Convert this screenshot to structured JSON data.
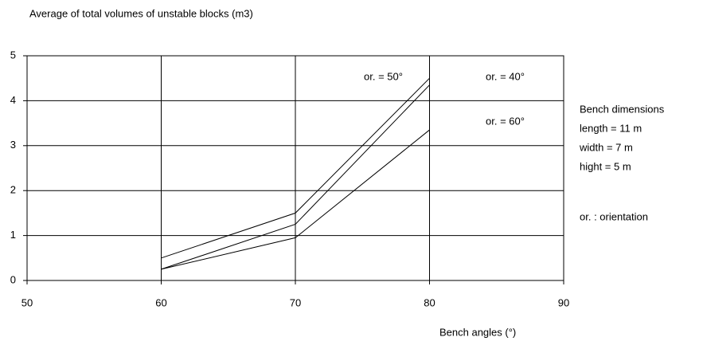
{
  "chart_data": {
    "type": "line",
    "title": "Average of total volumes of unstable blocks  (m3)",
    "x_label": "Bench angles (°)",
    "x": [
      60,
      70,
      80
    ],
    "series": [
      {
        "name": "or. = 40°",
        "color": "#000000",
        "values": [
          0.5,
          1.5,
          4.5
        ]
      },
      {
        "name": "or. = 50°",
        "color": "#000000",
        "values": [
          0.25,
          1.25,
          4.35
        ]
      },
      {
        "name": "or. = 60°",
        "color": "#000000",
        "values": [
          0.25,
          0.95,
          3.35
        ]
      }
    ],
    "xlim": [
      50,
      90
    ],
    "xticks": [
      50,
      60,
      70,
      80,
      90
    ],
    "ylim": [
      0,
      5
    ],
    "yticks": [
      0,
      1,
      2,
      3,
      4,
      5
    ],
    "grid": true,
    "annotations": [
      "Bench dimensions",
      "length = 11 m",
      "width =   7 m",
      "hight =   5 m",
      "or. : orientation"
    ]
  }
}
